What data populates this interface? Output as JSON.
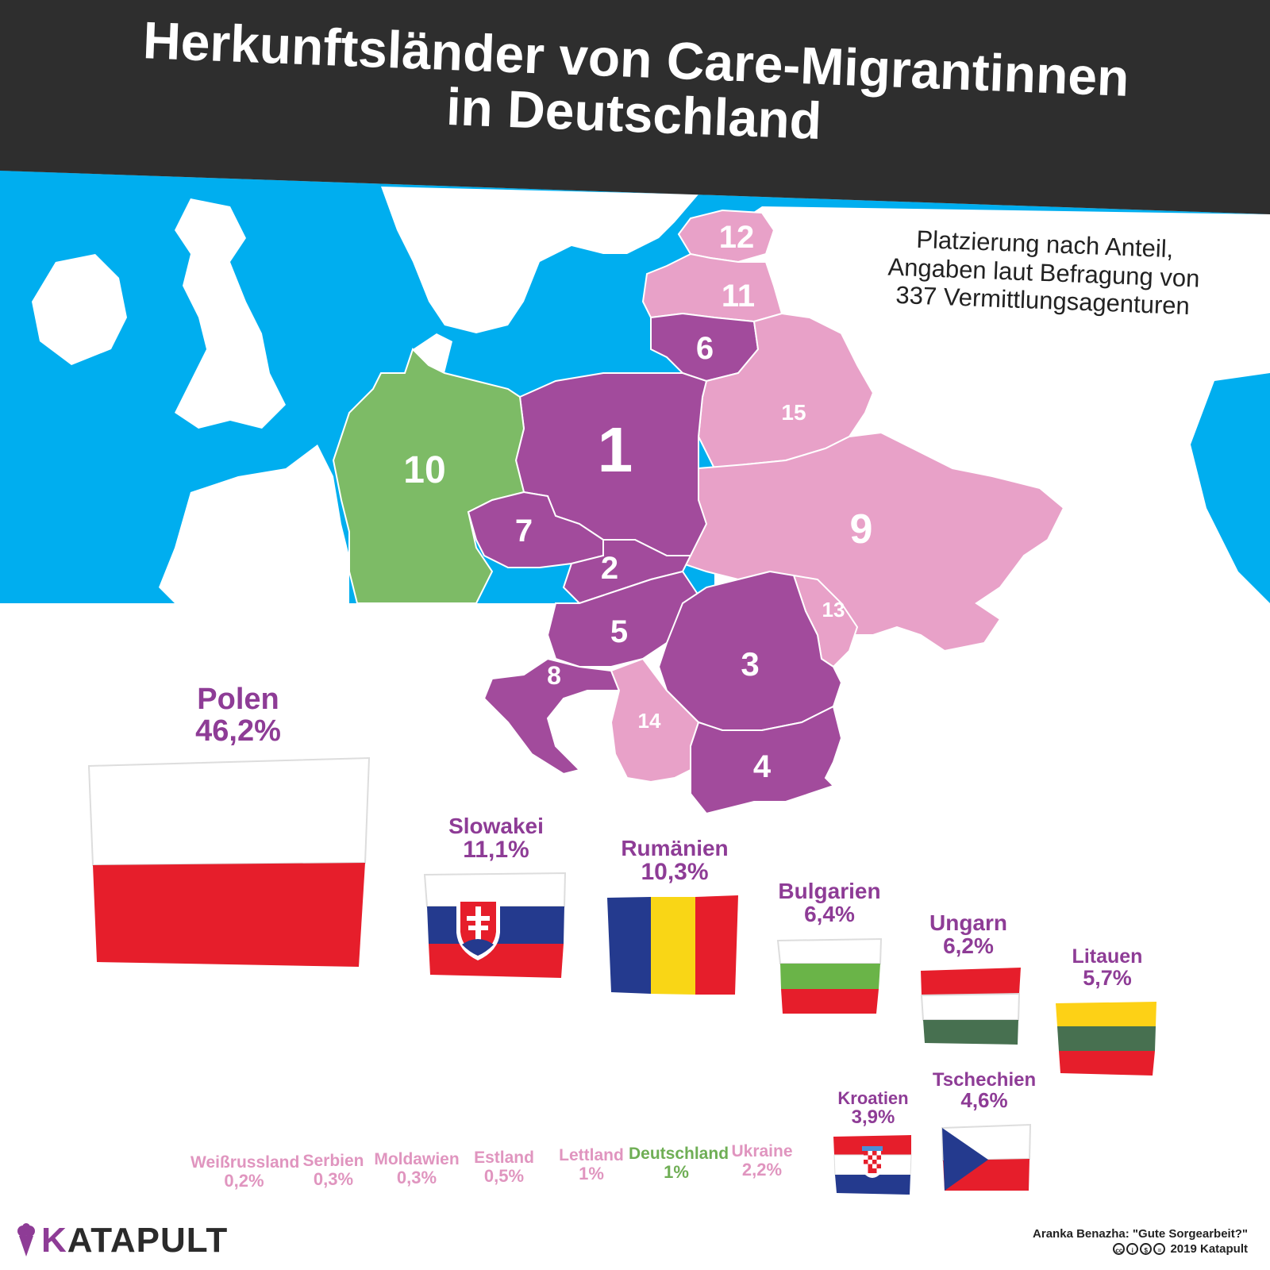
{
  "title": {
    "line1": "Herkunftsländer von Care-Migrantinnen",
    "line2": "in Deutschland"
  },
  "subtitle": {
    "line1": "Platzierung nach Anteil,",
    "line2": "Angaben laut Befragung von",
    "line3": "337 Vermittlungsagenturen"
  },
  "colors": {
    "sea": "#00aeef",
    "land": "#ffffff",
    "top_group": "#a24b9c",
    "low_group": "#e8a1c8",
    "germany": "#7dbb66",
    "title_band": "#2e2e2e",
    "purple_text": "#8e3c96",
    "pink_text": "#e095bf",
    "green_text": "#6fae55"
  },
  "map_ranks": {
    "poland": "1",
    "slovakia": "2",
    "romania": "3",
    "bulgaria": "4",
    "hungary": "5",
    "lithuania": "6",
    "czechia": "7",
    "croatia": "8",
    "ukraine": "9",
    "germany": "10",
    "latvia": "11",
    "estonia": "12",
    "moldova": "13",
    "serbia": "14",
    "belarus": "15"
  },
  "countries": [
    {
      "name": "Polen",
      "pct": "46,2%",
      "flag": "poland"
    },
    {
      "name": "Slowakei",
      "pct": "11,1%",
      "flag": "slovakia"
    },
    {
      "name": "Rumänien",
      "pct": "10,3%",
      "flag": "romania"
    },
    {
      "name": "Bulgarien",
      "pct": "6,4%",
      "flag": "bulgaria"
    },
    {
      "name": "Ungarn",
      "pct": "6,2%",
      "flag": "hungary"
    },
    {
      "name": "Litauen",
      "pct": "5,7%",
      "flag": "lithuania"
    },
    {
      "name": "Tschechien",
      "pct": "4,6%",
      "flag": "czechia"
    },
    {
      "name": "Kroatien",
      "pct": "3,9%",
      "flag": "croatia"
    },
    {
      "name": "Ukraine",
      "pct": "2,2%",
      "flag": ""
    },
    {
      "name": "Deutschland",
      "pct": "1%",
      "flag": ""
    },
    {
      "name": "Lettland",
      "pct": "1%",
      "flag": ""
    },
    {
      "name": "Estland",
      "pct": "0,5%",
      "flag": ""
    },
    {
      "name": "Moldawien",
      "pct": "0,3%",
      "flag": ""
    },
    {
      "name": "Serbien",
      "pct": "0,3%",
      "flag": ""
    },
    {
      "name": "Weißrussland",
      "pct": "0,2%",
      "flag": ""
    }
  ],
  "logo": {
    "k": "K",
    "rest": "ATAPULT"
  },
  "source": {
    "line1": "Aranka Benazha: \"Gute Sorgearbeit?\"",
    "line2": "2019 Katapult"
  }
}
